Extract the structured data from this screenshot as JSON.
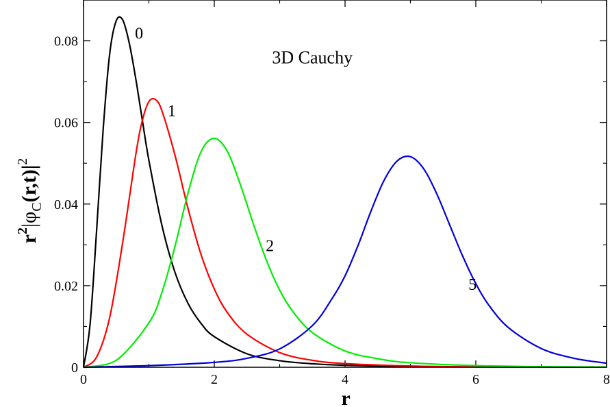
{
  "chart_data": {
    "type": "line",
    "title": "3D Cauchy",
    "xlabel": "r",
    "ylabel": {
      "base": "r",
      "sup1": "2",
      "mid": "|φ",
      "sub": "C",
      "arg": "(r,t)|",
      "sup2": "2"
    },
    "xlim": [
      0,
      8
    ],
    "ylim": [
      0,
      0.09
    ],
    "x_ticks": [
      0,
      2,
      4,
      6,
      8
    ],
    "x_tick_labels": [
      "0",
      "2",
      "4",
      "6",
      "8"
    ],
    "y_ticks": [
      0,
      0.02,
      0.04,
      0.06,
      0.08
    ],
    "y_tick_labels": [
      "0",
      "0.02",
      "0.04",
      "0.06",
      "0.08"
    ],
    "grid": false,
    "series": [
      {
        "name": "0",
        "color": "#000000",
        "x": [
          0,
          0.1,
          0.2,
          0.3,
          0.4,
          0.5,
          0.6,
          0.7,
          0.8,
          0.9,
          1.0,
          1.2,
          1.4,
          1.6,
          1.8,
          2.0,
          2.5,
          3.0,
          3.5,
          4.0,
          5.0,
          6.0,
          7.0,
          8.0
        ],
        "y": [
          0,
          0.0105,
          0.0335,
          0.0582,
          0.0768,
          0.0849,
          0.0851,
          0.0794,
          0.0706,
          0.0605,
          0.0507,
          0.0347,
          0.0232,
          0.0156,
          0.0107,
          0.0075,
          0.0033,
          0.0016,
          0.00085,
          0.00048,
          0.00017,
          7e-05,
          3e-05,
          1e-05
        ]
      },
      {
        "name": "1",
        "color": "#ff0000",
        "x": [
          0,
          0.2,
          0.4,
          0.6,
          0.8,
          0.9,
          1.0,
          1.1,
          1.2,
          1.4,
          1.6,
          1.8,
          2.0,
          2.2,
          2.5,
          3.0,
          3.5,
          4.0,
          5.0,
          6.0,
          7.0,
          8.0
        ],
        "y": [
          0,
          0.0025,
          0.0122,
          0.0307,
          0.0522,
          0.0605,
          0.0651,
          0.0656,
          0.0628,
          0.0519,
          0.0388,
          0.0275,
          0.0192,
          0.0134,
          0.0081,
          0.0036,
          0.0017,
          0.0009,
          0.0003,
          0.0001,
          5e-05,
          2e-05
        ]
      },
      {
        "name": "2",
        "color": "#00ee00",
        "x": [
          0,
          0.5,
          1.0,
          1.2,
          1.4,
          1.6,
          1.8,
          2.0,
          2.2,
          2.4,
          2.6,
          2.8,
          3.0,
          3.2,
          3.5,
          4.0,
          4.5,
          5.0,
          6.0,
          7.0,
          8.0
        ],
        "y": [
          0,
          0.0017,
          0.0109,
          0.0184,
          0.0297,
          0.0428,
          0.0529,
          0.0561,
          0.0529,
          0.0447,
          0.035,
          0.0261,
          0.0189,
          0.0137,
          0.0085,
          0.004,
          0.0021,
          0.0011,
          0.0004,
          0.00015,
          6e-05
        ]
      },
      {
        "name": "5",
        "color": "#0000dd",
        "x": [
          0,
          1.0,
          2.0,
          2.5,
          3.0,
          3.5,
          3.8,
          4.0,
          4.2,
          4.4,
          4.6,
          4.8,
          5.0,
          5.2,
          5.4,
          5.6,
          5.8,
          6.0,
          6.2,
          6.5,
          7.0,
          7.5,
          8.0
        ],
        "y": [
          0,
          0.0004,
          0.0012,
          0.0022,
          0.0045,
          0.0102,
          0.0168,
          0.0224,
          0.0299,
          0.0384,
          0.0459,
          0.0506,
          0.0516,
          0.0487,
          0.0426,
          0.0349,
          0.0272,
          0.0205,
          0.0152,
          0.0097,
          0.0046,
          0.0022,
          0.001
        ]
      }
    ],
    "curve_labels": [
      {
        "text": "0",
        "x": 0.85,
        "y": 0.0805
      },
      {
        "text": "1",
        "x": 1.35,
        "y": 0.0615
      },
      {
        "text": "2",
        "x": 2.85,
        "y": 0.0285
      },
      {
        "text": "5",
        "x": 5.95,
        "y": 0.019
      }
    ],
    "title_position": {
      "x": 3.5,
      "y": 0.0745
    }
  }
}
